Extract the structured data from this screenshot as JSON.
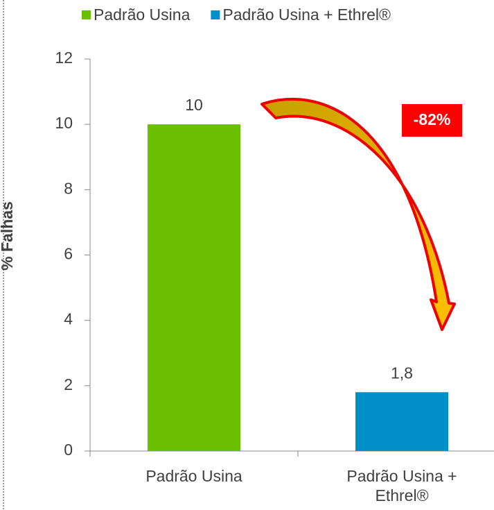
{
  "chart_data": {
    "type": "bar",
    "categories": [
      "Padrão Usina",
      "Padrão Usina + Ethrel®"
    ],
    "series": [
      {
        "name": "Padrão Usina",
        "color": "#6abf00",
        "values": [
          10,
          null
        ],
        "value_labels": [
          "10",
          null
        ]
      },
      {
        "name": "Padrão Usina + Ethrel®",
        "color": "#0090c8",
        "values": [
          null,
          1.8
        ],
        "value_labels": [
          null,
          "1,8"
        ]
      }
    ],
    "y_label": "% Falhas",
    "annotation": "-82%",
    "ylim": [
      0,
      12
    ],
    "yticks": [
      0,
      2,
      4,
      6,
      8,
      10,
      12
    ],
    "grid": false
  }
}
